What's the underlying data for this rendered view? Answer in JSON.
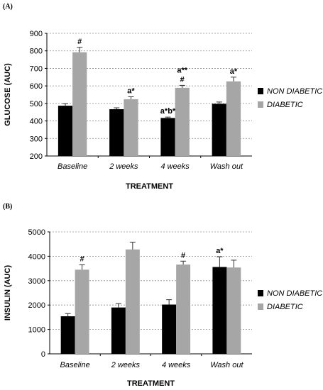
{
  "chart_data": [
    {
      "panel_label": "(A)",
      "type": "bar",
      "categories": [
        "Baseline",
        "2 weeks",
        "4 weeks",
        "Wash out"
      ],
      "series": [
        {
          "name": "NON DIABETIC",
          "color": "#000000",
          "values": [
            487,
            467,
            417,
            498
          ],
          "errors": [
            12,
            8,
            5,
            10
          ]
        },
        {
          "name": "DIABETIC",
          "color": "#a6a6a6",
          "values": [
            792,
            524,
            589,
            626
          ],
          "errors": [
            28,
            14,
            14,
            24
          ]
        }
      ],
      "annotations": [
        {
          "category": 0,
          "series": 1,
          "text": "#"
        },
        {
          "category": 1,
          "series": 1,
          "text": "a*"
        },
        {
          "category": 2,
          "series": 0,
          "text": "a*b*"
        },
        {
          "category": 2,
          "series": 1,
          "text": "#",
          "above": "a**"
        },
        {
          "category": 3,
          "series": 1,
          "text": "a*"
        }
      ],
      "xlabel": "TREATMENT",
      "ylabel": "GLUCOSE (AUC)",
      "ylim": [
        200,
        900
      ],
      "yticks": [
        200,
        300,
        400,
        500,
        600,
        700,
        800,
        900
      ],
      "grid": true,
      "legend": "right"
    },
    {
      "panel_label": "(B)",
      "type": "bar",
      "categories": [
        "Baseline",
        "2 weeks",
        "4 weeks",
        "Wash out"
      ],
      "series": [
        {
          "name": "NON DIABETIC",
          "color": "#000000",
          "values": [
            1540,
            1900,
            2020,
            3560
          ],
          "errors": [
            110,
            160,
            200,
            420
          ]
        },
        {
          "name": "DIABETIC",
          "color": "#a6a6a6",
          "values": [
            3450,
            4280,
            3660,
            3540
          ],
          "errors": [
            200,
            300,
            140,
            300
          ]
        }
      ],
      "annotations": [
        {
          "category": 0,
          "series": 1,
          "text": "#"
        },
        {
          "category": 2,
          "series": 1,
          "text": "#"
        },
        {
          "category": 3,
          "series": 0,
          "text": "a*"
        }
      ],
      "xlabel": "TREATMENT",
      "ylabel": "INSULIN (AUC)",
      "ylim": [
        0,
        5000
      ],
      "yticks": [
        0,
        1000,
        2000,
        3000,
        4000,
        5000
      ],
      "grid": true,
      "legend": "right"
    }
  ]
}
